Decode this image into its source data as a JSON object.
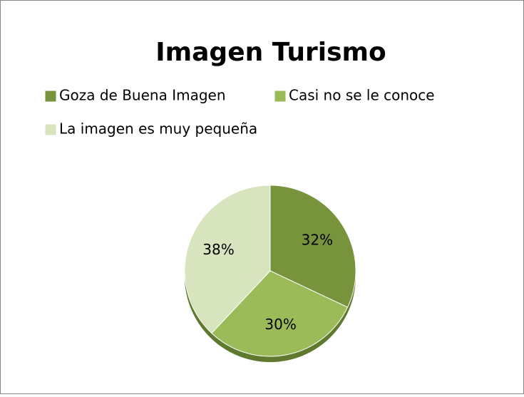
{
  "chart_data": {
    "type": "pie",
    "title": "Imagen Turismo",
    "categories": [
      "Goza de Buena Imagen",
      "Casi no se le conoce",
      "La imagen es muy pequeña"
    ],
    "values": [
      32,
      30,
      38
    ],
    "value_labels": [
      "32%",
      "30%",
      "38%"
    ],
    "colors": [
      "#77933c",
      "#9bbb59",
      "#d7e4bd"
    ],
    "legend": "top"
  }
}
